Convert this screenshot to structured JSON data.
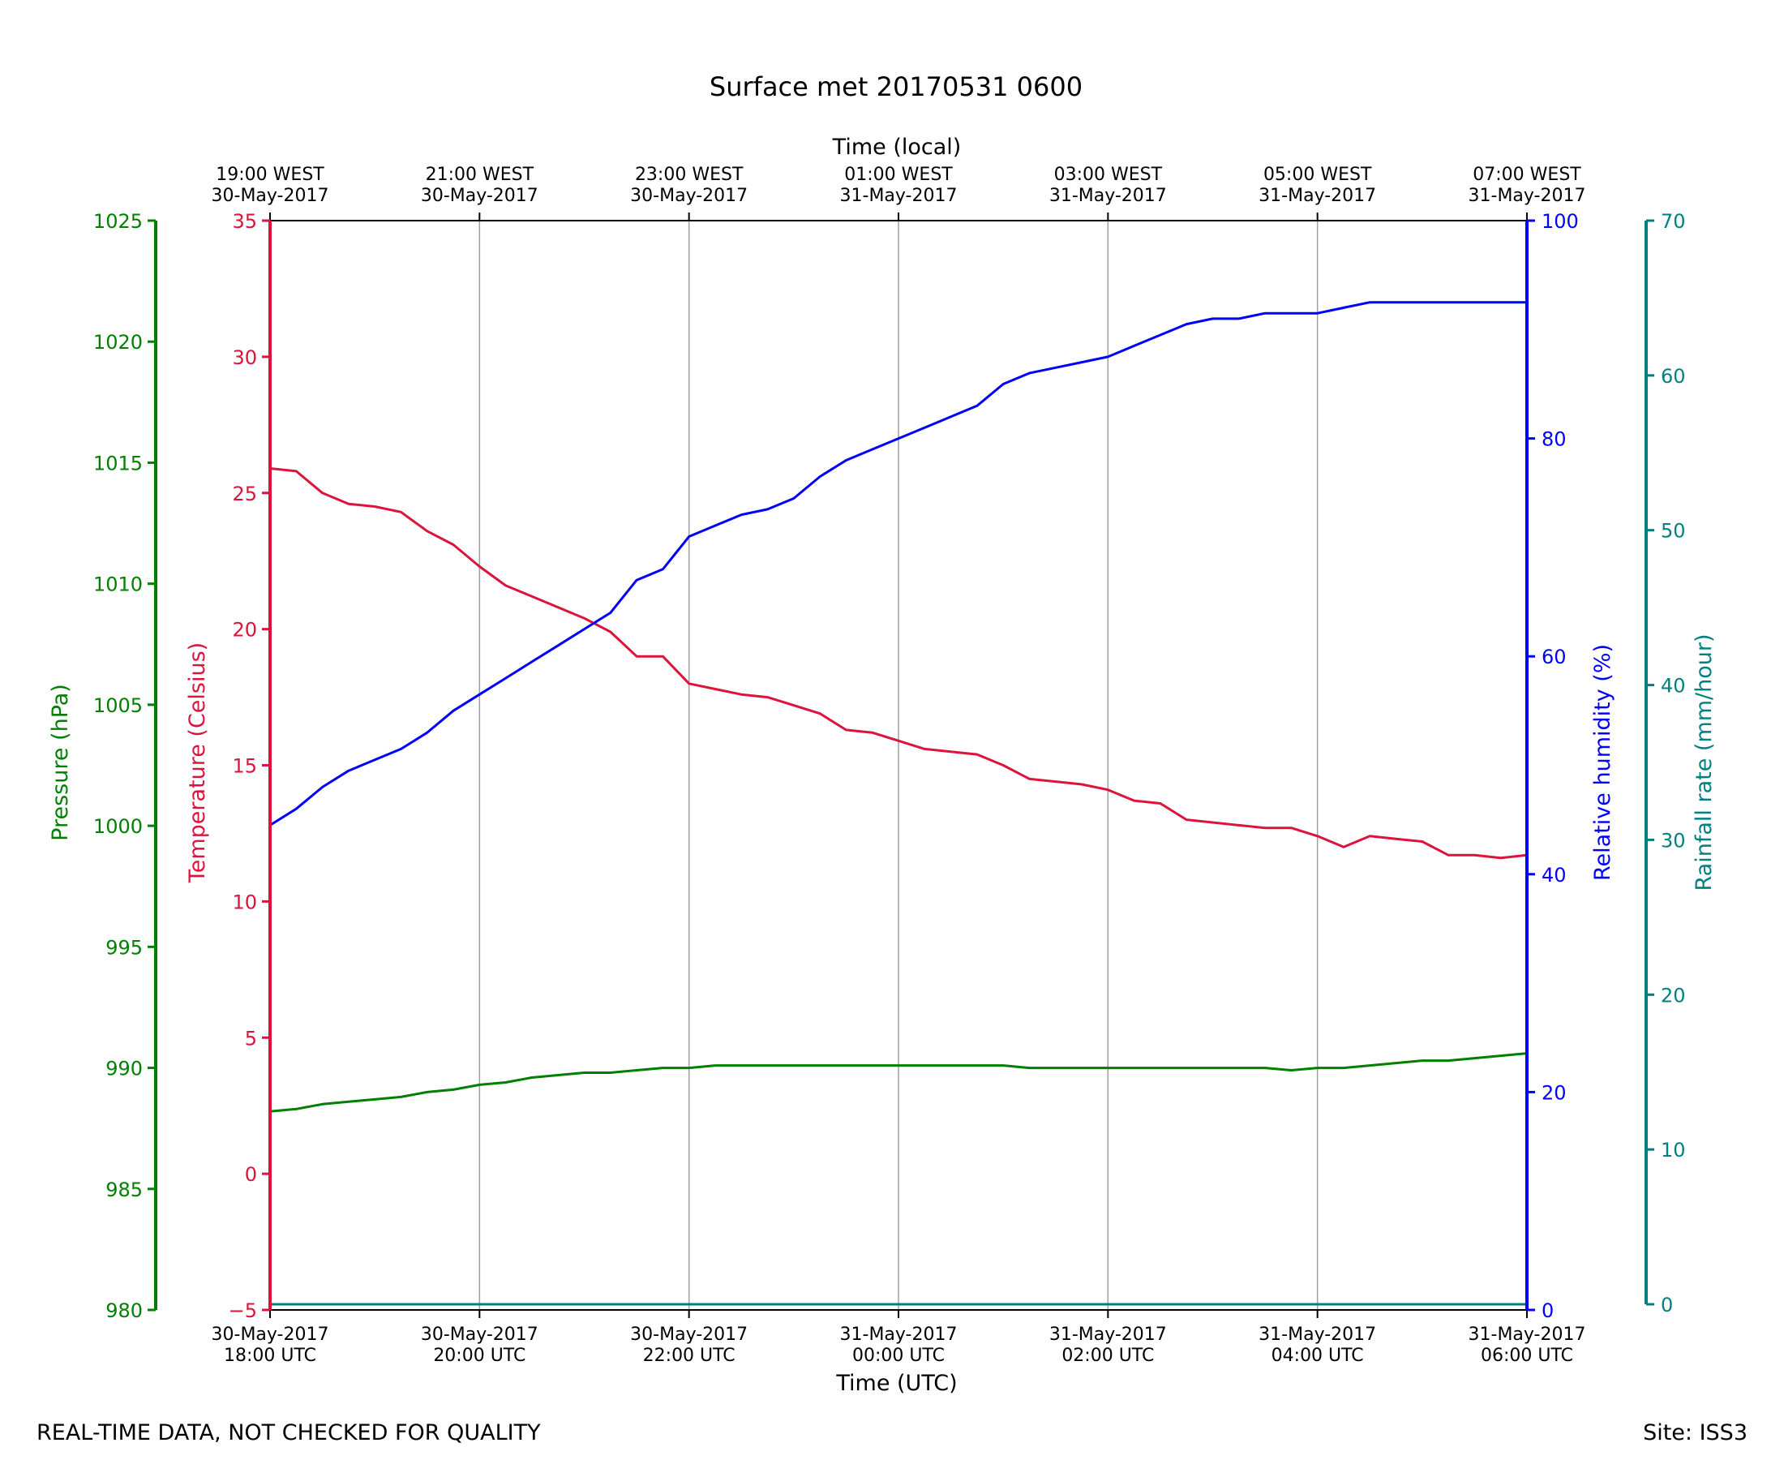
{
  "title": "Surface met 20170531 0600",
  "footer": {
    "left": "REAL-TIME DATA, NOT CHECKED FOR QUALITY",
    "right": "Site: ISS3"
  },
  "colors": {
    "temperature": "#dc143c",
    "humidity": "#0000ff",
    "pressure": "#008000",
    "rainfall": "#008080",
    "grid": "#a0a0a0",
    "axis": "#000000"
  },
  "chart_data": {
    "type": "line",
    "grid": "vertical",
    "x_axis_bottom": {
      "label": "Time (UTC)",
      "range": [
        "2017-05-30 18:00 UTC",
        "2017-05-31 06:00 UTC"
      ],
      "ticks": [
        {
          "date": "30-May-2017",
          "time": "18:00 UTC"
        },
        {
          "date": "30-May-2017",
          "time": "20:00 UTC"
        },
        {
          "date": "30-May-2017",
          "time": "22:00 UTC"
        },
        {
          "date": "31-May-2017",
          "time": "00:00 UTC"
        },
        {
          "date": "31-May-2017",
          "time": "02:00 UTC"
        },
        {
          "date": "31-May-2017",
          "time": "04:00 UTC"
        },
        {
          "date": "31-May-2017",
          "time": "06:00 UTC"
        }
      ]
    },
    "x_axis_top": {
      "label": "Time (local)",
      "ticks": [
        {
          "time": "19:00 WEST",
          "date": "30-May-2017"
        },
        {
          "time": "21:00 WEST",
          "date": "30-May-2017"
        },
        {
          "time": "23:00 WEST",
          "date": "30-May-2017"
        },
        {
          "time": "01:00 WEST",
          "date": "31-May-2017"
        },
        {
          "time": "03:00 WEST",
          "date": "31-May-2017"
        },
        {
          "time": "05:00 WEST",
          "date": "31-May-2017"
        },
        {
          "time": "07:00 WEST",
          "date": "31-May-2017"
        }
      ]
    },
    "y_axes": {
      "pressure": {
        "label": "Pressure (hPa)",
        "ylim": [
          980,
          1025
        ],
        "ticks": [
          "980",
          "985",
          "990",
          "995",
          "1000",
          "1005",
          "1010",
          "1015",
          "1020",
          "1025"
        ]
      },
      "temperature": {
        "label": "Temperature (Celsius)",
        "ylim": [
          -5,
          35
        ],
        "ticks": [
          "−5",
          "0",
          "5",
          "10",
          "15",
          "20",
          "25",
          "30",
          "35"
        ]
      },
      "humidity": {
        "label": "Relative humidity (%)",
        "ylim": [
          0,
          100
        ],
        "ticks": [
          "0",
          "20",
          "40",
          "60",
          "80",
          "100"
        ]
      },
      "rainfall": {
        "label": "Rainfall rate (mm/hour)",
        "ylim": [
          0,
          70
        ],
        "ticks": [
          "0",
          "10",
          "20",
          "30",
          "40",
          "50",
          "60",
          "70"
        ]
      }
    },
    "x_hours_since_2017-05-30_18UTC": [
      0.0,
      0.25,
      0.5,
      0.75,
      1.0,
      1.25,
      1.5,
      1.75,
      2.0,
      2.25,
      2.5,
      2.75,
      3.0,
      3.25,
      3.5,
      3.75,
      4.0,
      4.25,
      4.5,
      4.75,
      5.0,
      5.25,
      5.5,
      5.75,
      6.0,
      6.25,
      6.5,
      6.75,
      7.0,
      7.25,
      7.5,
      7.75,
      8.0,
      8.25,
      8.5,
      8.75,
      9.0,
      9.25,
      9.5,
      9.75,
      10.0,
      10.25,
      10.5,
      10.75,
      11.0,
      11.25,
      11.5,
      11.75,
      12.0
    ],
    "series": [
      {
        "name": "Temperature (Celsius)",
        "axis": "temperature",
        "values": [
          25.9,
          25.8,
          25.0,
          24.6,
          24.5,
          24.3,
          23.6,
          23.1,
          22.3,
          21.6,
          21.2,
          20.8,
          20.4,
          19.9,
          19.0,
          19.0,
          18.0,
          17.8,
          17.6,
          17.5,
          17.2,
          16.9,
          16.3,
          16.2,
          15.9,
          15.6,
          15.5,
          15.4,
          15.0,
          14.5,
          14.4,
          14.3,
          14.1,
          13.7,
          13.6,
          13.0,
          12.9,
          12.8,
          12.7,
          12.7,
          12.4,
          12.0,
          12.4,
          12.3,
          12.2,
          11.7,
          11.7,
          11.6,
          11.7
        ]
      },
      {
        "name": "Relative humidity (%)",
        "axis": "humidity",
        "values": [
          44.5,
          46.0,
          48.0,
          49.5,
          50.5,
          51.5,
          53.0,
          55.0,
          56.5,
          58.0,
          59.5,
          61.0,
          62.5,
          64.0,
          67.0,
          68.0,
          71.0,
          72.0,
          73.0,
          73.5,
          74.5,
          76.5,
          78.0,
          79.0,
          80.0,
          81.0,
          82.0,
          83.0,
          85.0,
          86.0,
          86.5,
          87.0,
          87.5,
          88.5,
          89.5,
          90.5,
          91.0,
          91.0,
          91.5,
          91.5,
          91.5,
          92.0,
          92.5,
          92.5,
          92.5,
          92.5,
          92.5,
          92.5,
          92.5
        ]
      },
      {
        "name": "Pressure (hPa)",
        "axis": "pressure",
        "values": [
          988.2,
          988.3,
          988.5,
          988.6,
          988.7,
          988.8,
          989.0,
          989.1,
          989.3,
          989.4,
          989.6,
          989.7,
          989.8,
          989.8,
          989.9,
          990.0,
          990.0,
          990.1,
          990.1,
          990.1,
          990.1,
          990.1,
          990.1,
          990.1,
          990.1,
          990.1,
          990.1,
          990.1,
          990.1,
          990.0,
          990.0,
          990.0,
          990.0,
          990.0,
          990.0,
          990.0,
          990.0,
          990.0,
          990.0,
          989.9,
          990.0,
          990.0,
          990.1,
          990.2,
          990.3,
          990.3,
          990.4,
          990.5,
          990.6
        ]
      },
      {
        "name": "Rainfall rate (mm/hour)",
        "axis": "rainfall",
        "values": [
          0,
          0,
          0,
          0,
          0,
          0,
          0,
          0,
          0,
          0,
          0,
          0,
          0,
          0,
          0,
          0,
          0,
          0,
          0,
          0,
          0,
          0,
          0,
          0,
          0,
          0,
          0,
          0,
          0,
          0,
          0,
          0,
          0,
          0,
          0,
          0,
          0,
          0,
          0,
          0,
          0,
          0,
          0,
          0,
          0,
          0,
          0,
          0,
          0
        ]
      }
    ]
  }
}
